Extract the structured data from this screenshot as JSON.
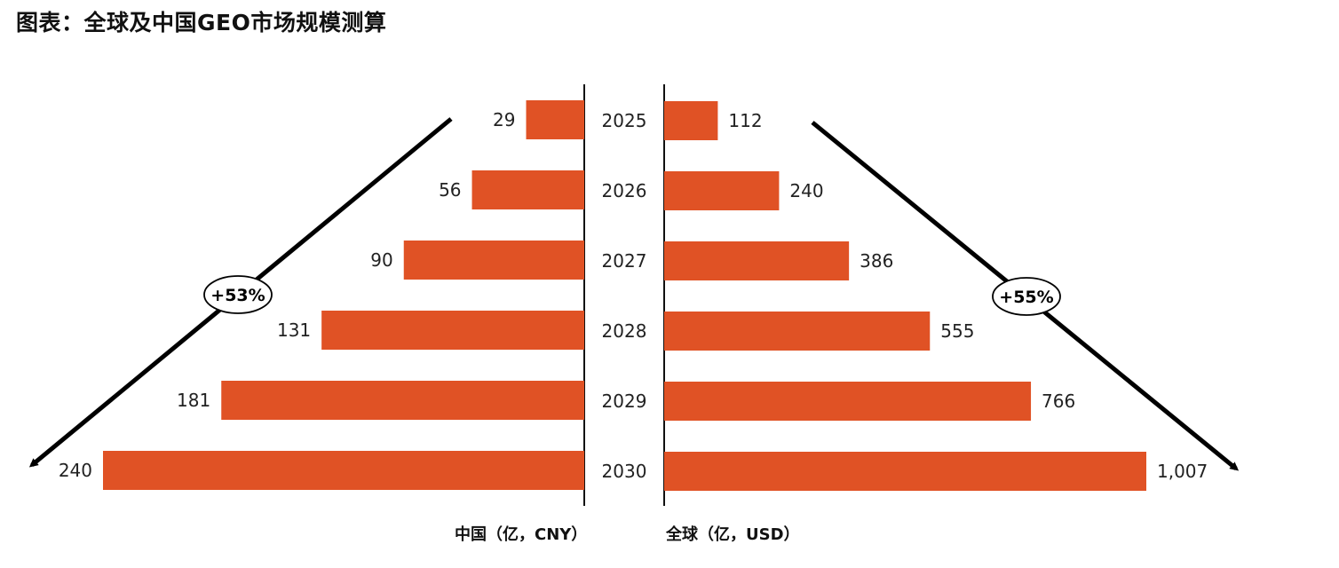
{
  "title": "图表：全球及中国GEO市场规模测算",
  "chart_data": {
    "type": "bar",
    "orientation": "horizontal",
    "layout": "butterfly",
    "categories": [
      "2025",
      "2026",
      "2027",
      "2028",
      "2029",
      "2030"
    ],
    "series": [
      {
        "name": "中国（亿，CNY）",
        "side": "left",
        "values": [
          29,
          56,
          90,
          131,
          181,
          240
        ],
        "labels": [
          "29",
          "56",
          "90",
          "131",
          "181",
          "240"
        ]
      },
      {
        "name": "全球（亿，USD）",
        "side": "right",
        "values": [
          112,
          240,
          386,
          555,
          766,
          1007
        ],
        "labels": [
          "112",
          "240",
          "386",
          "555",
          "766",
          "1,007"
        ]
      }
    ],
    "annotations": [
      {
        "series": "中国（亿，CNY）",
        "text": "+53%"
      },
      {
        "series": "全球（亿，USD）",
        "text": "+55%"
      }
    ],
    "bar_color": "#E05225",
    "legend": "none",
    "grid": false
  }
}
